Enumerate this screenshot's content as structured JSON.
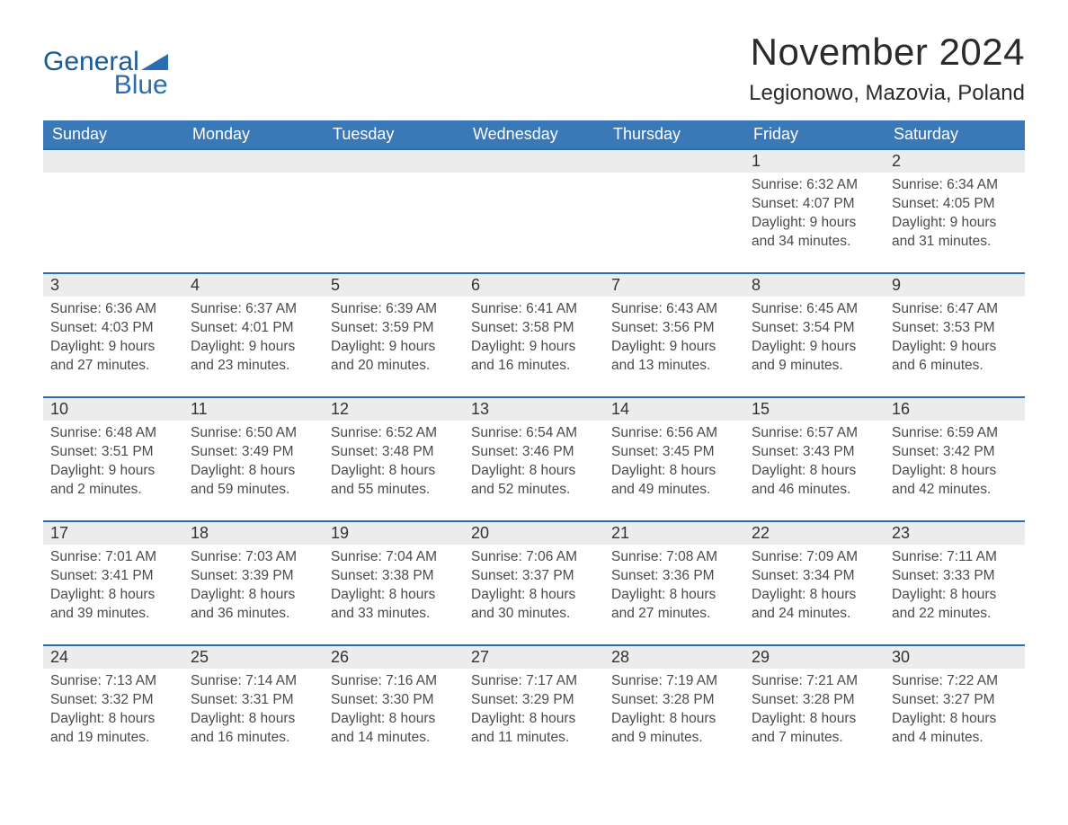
{
  "logo": {
    "general": "General",
    "blue": "Blue"
  },
  "title": "November 2024",
  "location": "Legionowo, Mazovia, Poland",
  "colors": {
    "header_blue": "#3b78b8",
    "accent_blue": "#2a6db0",
    "logo_text": "#1b5a9a",
    "day_strip": "#ececec",
    "body_text": "#333333",
    "background": "#ffffff"
  },
  "weekdays": [
    "Sunday",
    "Monday",
    "Tuesday",
    "Wednesday",
    "Thursday",
    "Friday",
    "Saturday"
  ],
  "grid": [
    [
      null,
      null,
      null,
      null,
      null,
      {
        "day": "1",
        "sunrise": "6:32 AM",
        "sunset": "4:07 PM",
        "daylight": "9 hours and 34 minutes."
      },
      {
        "day": "2",
        "sunrise": "6:34 AM",
        "sunset": "4:05 PM",
        "daylight": "9 hours and 31 minutes."
      }
    ],
    [
      {
        "day": "3",
        "sunrise": "6:36 AM",
        "sunset": "4:03 PM",
        "daylight": "9 hours and 27 minutes."
      },
      {
        "day": "4",
        "sunrise": "6:37 AM",
        "sunset": "4:01 PM",
        "daylight": "9 hours and 23 minutes."
      },
      {
        "day": "5",
        "sunrise": "6:39 AM",
        "sunset": "3:59 PM",
        "daylight": "9 hours and 20 minutes."
      },
      {
        "day": "6",
        "sunrise": "6:41 AM",
        "sunset": "3:58 PM",
        "daylight": "9 hours and 16 minutes."
      },
      {
        "day": "7",
        "sunrise": "6:43 AM",
        "sunset": "3:56 PM",
        "daylight": "9 hours and 13 minutes."
      },
      {
        "day": "8",
        "sunrise": "6:45 AM",
        "sunset": "3:54 PM",
        "daylight": "9 hours and 9 minutes."
      },
      {
        "day": "9",
        "sunrise": "6:47 AM",
        "sunset": "3:53 PM",
        "daylight": "9 hours and 6 minutes."
      }
    ],
    [
      {
        "day": "10",
        "sunrise": "6:48 AM",
        "sunset": "3:51 PM",
        "daylight": "9 hours and 2 minutes."
      },
      {
        "day": "11",
        "sunrise": "6:50 AM",
        "sunset": "3:49 PM",
        "daylight": "8 hours and 59 minutes."
      },
      {
        "day": "12",
        "sunrise": "6:52 AM",
        "sunset": "3:48 PM",
        "daylight": "8 hours and 55 minutes."
      },
      {
        "day": "13",
        "sunrise": "6:54 AM",
        "sunset": "3:46 PM",
        "daylight": "8 hours and 52 minutes."
      },
      {
        "day": "14",
        "sunrise": "6:56 AM",
        "sunset": "3:45 PM",
        "daylight": "8 hours and 49 minutes."
      },
      {
        "day": "15",
        "sunrise": "6:57 AM",
        "sunset": "3:43 PM",
        "daylight": "8 hours and 46 minutes."
      },
      {
        "day": "16",
        "sunrise": "6:59 AM",
        "sunset": "3:42 PM",
        "daylight": "8 hours and 42 minutes."
      }
    ],
    [
      {
        "day": "17",
        "sunrise": "7:01 AM",
        "sunset": "3:41 PM",
        "daylight": "8 hours and 39 minutes."
      },
      {
        "day": "18",
        "sunrise": "7:03 AM",
        "sunset": "3:39 PM",
        "daylight": "8 hours and 36 minutes."
      },
      {
        "day": "19",
        "sunrise": "7:04 AM",
        "sunset": "3:38 PM",
        "daylight": "8 hours and 33 minutes."
      },
      {
        "day": "20",
        "sunrise": "7:06 AM",
        "sunset": "3:37 PM",
        "daylight": "8 hours and 30 minutes."
      },
      {
        "day": "21",
        "sunrise": "7:08 AM",
        "sunset": "3:36 PM",
        "daylight": "8 hours and 27 minutes."
      },
      {
        "day": "22",
        "sunrise": "7:09 AM",
        "sunset": "3:34 PM",
        "daylight": "8 hours and 24 minutes."
      },
      {
        "day": "23",
        "sunrise": "7:11 AM",
        "sunset": "3:33 PM",
        "daylight": "8 hours and 22 minutes."
      }
    ],
    [
      {
        "day": "24",
        "sunrise": "7:13 AM",
        "sunset": "3:32 PM",
        "daylight": "8 hours and 19 minutes."
      },
      {
        "day": "25",
        "sunrise": "7:14 AM",
        "sunset": "3:31 PM",
        "daylight": "8 hours and 16 minutes."
      },
      {
        "day": "26",
        "sunrise": "7:16 AM",
        "sunset": "3:30 PM",
        "daylight": "8 hours and 14 minutes."
      },
      {
        "day": "27",
        "sunrise": "7:17 AM",
        "sunset": "3:29 PM",
        "daylight": "8 hours and 11 minutes."
      },
      {
        "day": "28",
        "sunrise": "7:19 AM",
        "sunset": "3:28 PM",
        "daylight": "8 hours and 9 minutes."
      },
      {
        "day": "29",
        "sunrise": "7:21 AM",
        "sunset": "3:28 PM",
        "daylight": "8 hours and 7 minutes."
      },
      {
        "day": "30",
        "sunrise": "7:22 AM",
        "sunset": "3:27 PM",
        "daylight": "8 hours and 4 minutes."
      }
    ]
  ],
  "labels": {
    "sunrise": "Sunrise: ",
    "sunset": "Sunset: ",
    "daylight": "Daylight: "
  }
}
